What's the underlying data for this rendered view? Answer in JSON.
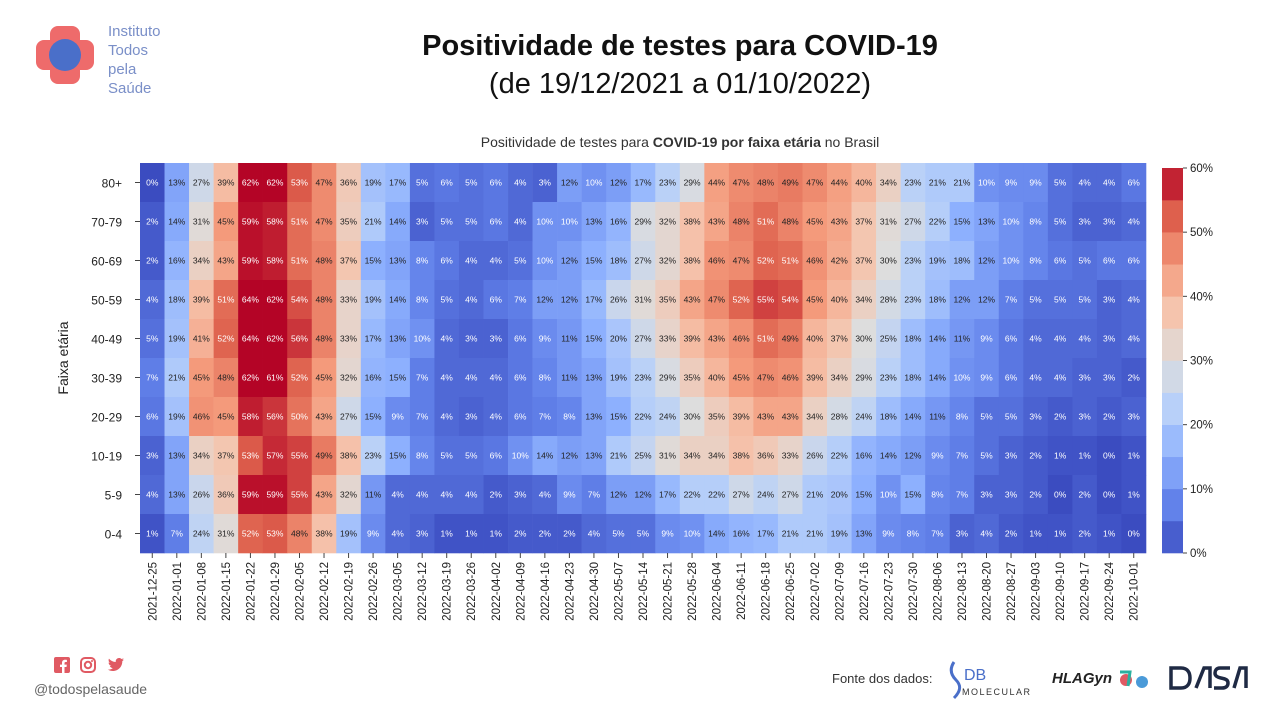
{
  "logo": {
    "lines": [
      "Instituto",
      "Todos",
      "pela",
      "Saúde"
    ],
    "colors": {
      "red": "#e95b5b",
      "blue": "#4a6fc9"
    }
  },
  "header": {
    "title": "Positividade de testes para COVID-19",
    "subtitle": "(de 19/12/2021 a 01/10/2022)"
  },
  "chart_title": {
    "prefix": "Positividade de testes para ",
    "bold1": "COVID-19",
    "mid": " ",
    "bold2": "por faixa etária",
    "suffix": " no Brasil"
  },
  "footer": {
    "social_icons": [
      "facebook-icon",
      "instagram-icon",
      "twitter-icon"
    ],
    "handle": "@todospelasaude",
    "source_label": "Fonte dos dados:",
    "partners": {
      "db_main": "DB",
      "db_sub": "MOLECULAR",
      "hla": "HLAGyn",
      "dasa": "DASA"
    }
  },
  "chart_data": {
    "type": "heatmap",
    "title": "Positividade de testes para COVID-19 por faixa etária no Brasil",
    "ylabel": "Faixa etária",
    "xlabel": "",
    "x": [
      "2021-12-25",
      "2022-01-01",
      "2022-01-08",
      "2022-01-15",
      "2022-01-22",
      "2022-01-29",
      "2022-02-05",
      "2022-02-12",
      "2022-02-19",
      "2022-02-26",
      "2022-03-05",
      "2022-03-12",
      "2022-03-19",
      "2022-03-26",
      "2022-04-02",
      "2022-04-09",
      "2022-04-16",
      "2022-04-23",
      "2022-04-30",
      "2022-05-07",
      "2022-05-14",
      "2022-05-21",
      "2022-05-28",
      "2022-06-04",
      "2022-06-11",
      "2022-06-18",
      "2022-06-25",
      "2022-07-02",
      "2022-07-09",
      "2022-07-16",
      "2022-07-23",
      "2022-07-30",
      "2022-08-06",
      "2022-08-13",
      "2022-08-20",
      "2022-08-27",
      "2022-09-03",
      "2022-09-10",
      "2022-09-17",
      "2022-09-24",
      "2022-10-01"
    ],
    "y": [
      "80+",
      "70-79",
      "60-69",
      "50-59",
      "40-49",
      "30-39",
      "20-29",
      "10-19",
      "5-9",
      "0-4"
    ],
    "values": [
      [
        0,
        13,
        27,
        39,
        62,
        62,
        53,
        47,
        36,
        19,
        17,
        5,
        6,
        5,
        6,
        4,
        3,
        12,
        10,
        12,
        17,
        23,
        29,
        44,
        47,
        48,
        49,
        47,
        44,
        40,
        34,
        23,
        21,
        21,
        10,
        9,
        9,
        5,
        4,
        4,
        6
      ],
      [
        2,
        14,
        31,
        45,
        59,
        58,
        51,
        47,
        35,
        21,
        14,
        3,
        5,
        5,
        6,
        4,
        10,
        10,
        13,
        16,
        29,
        32,
        38,
        43,
        48,
        51,
        48,
        45,
        43,
        37,
        31,
        27,
        22,
        15,
        13,
        10,
        8,
        5,
        3,
        3,
        4
      ],
      [
        2,
        16,
        34,
        43,
        59,
        58,
        51,
        48,
        37,
        15,
        13,
        8,
        6,
        4,
        4,
        5,
        10,
        12,
        15,
        18,
        27,
        32,
        38,
        46,
        47,
        52,
        51,
        46,
        42,
        37,
        30,
        23,
        19,
        18,
        12,
        10,
        8,
        6,
        5,
        6,
        6
      ],
      [
        4,
        18,
        39,
        51,
        64,
        62,
        54,
        48,
        33,
        19,
        14,
        8,
        5,
        4,
        6,
        7,
        12,
        12,
        17,
        26,
        31,
        35,
        43,
        47,
        52,
        55,
        54,
        45,
        40,
        34,
        28,
        23,
        18,
        12,
        12,
        7,
        5,
        5,
        5,
        3,
        4
      ],
      [
        5,
        19,
        41,
        52,
        64,
        62,
        56,
        48,
        33,
        17,
        13,
        10,
        4,
        3,
        3,
        6,
        9,
        11,
        15,
        20,
        27,
        33,
        39,
        43,
        46,
        51,
        49,
        40,
        37,
        30,
        25,
        18,
        14,
        11,
        9,
        6,
        4,
        4,
        4,
        3,
        4
      ],
      [
        7,
        21,
        45,
        48,
        62,
        61,
        52,
        45,
        32,
        16,
        15,
        7,
        4,
        4,
        4,
        6,
        8,
        11,
        13,
        19,
        23,
        29,
        35,
        40,
        45,
        47,
        46,
        39,
        34,
        29,
        23,
        18,
        14,
        10,
        9,
        6,
        4,
        4,
        3,
        3,
        2
      ],
      [
        6,
        19,
        46,
        45,
        58,
        56,
        50,
        43,
        27,
        15,
        9,
        7,
        4,
        3,
        4,
        6,
        7,
        8,
        13,
        15,
        22,
        24,
        30,
        35,
        39,
        43,
        43,
        34,
        28,
        24,
        18,
        14,
        11,
        8,
        5,
        5,
        3,
        2,
        3,
        2,
        3
      ],
      [
        3,
        13,
        34,
        37,
        53,
        57,
        55,
        49,
        38,
        23,
        15,
        8,
        5,
        5,
        6,
        10,
        14,
        12,
        13,
        21,
        25,
        31,
        34,
        34,
        38,
        36,
        33,
        26,
        22,
        16,
        14,
        12,
        9,
        7,
        5,
        3,
        2,
        1,
        1,
        0,
        1
      ],
      [
        4,
        13,
        26,
        36,
        59,
        59,
        55,
        43,
        32,
        11,
        4,
        4,
        4,
        4,
        2,
        3,
        4,
        9,
        7,
        12,
        12,
        17,
        22,
        22,
        27,
        24,
        27,
        21,
        20,
        15,
        10,
        15,
        8,
        7,
        3,
        3,
        2,
        0,
        2,
        0,
        1
      ],
      [
        1,
        7,
        24,
        31,
        52,
        53,
        48,
        38,
        19,
        9,
        4,
        3,
        1,
        1,
        1,
        2,
        2,
        2,
        4,
        5,
        5,
        9,
        10,
        14,
        16,
        17,
        21,
        21,
        19,
        13,
        9,
        8,
        7,
        3,
        4,
        2,
        1,
        1,
        2,
        1,
        0
      ]
    ],
    "value_format": "percent",
    "colorbar": {
      "min": 0,
      "max": 60,
      "ticks": [
        "0%",
        "10%",
        "20%",
        "30%",
        "40%",
        "50%",
        "60%"
      ],
      "colormap": "coolwarm"
    },
    "grid": false
  }
}
